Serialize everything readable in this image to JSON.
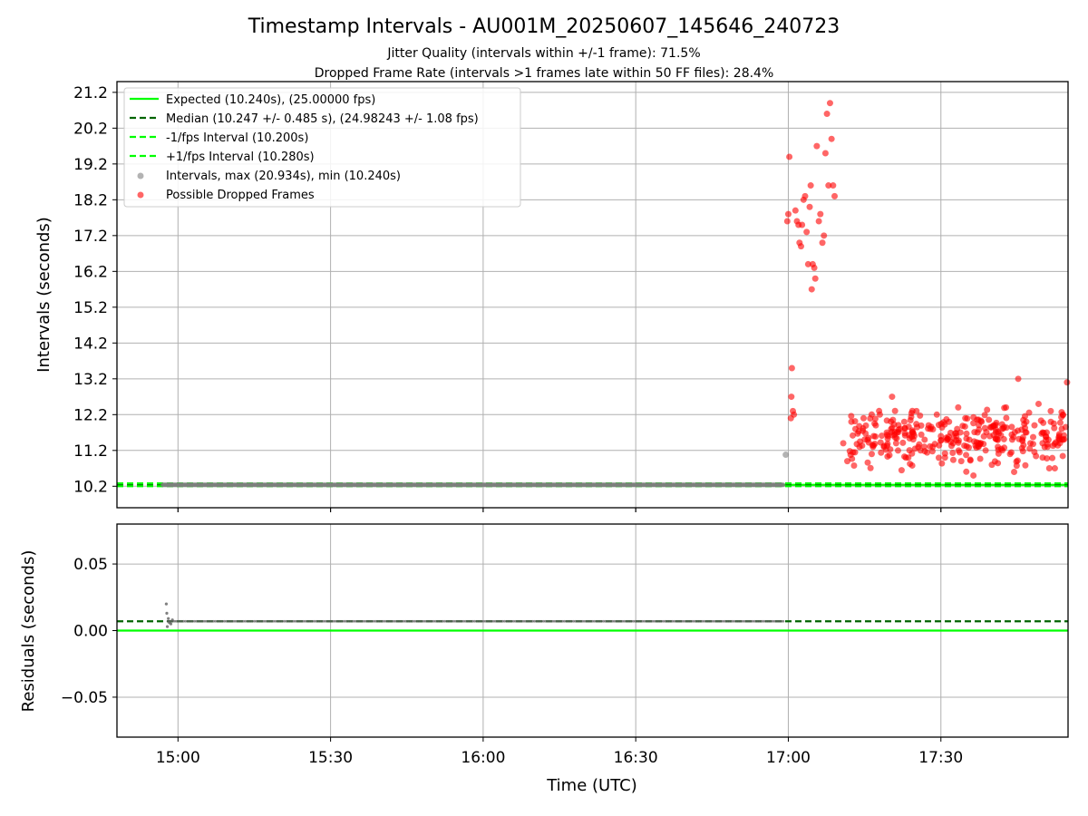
{
  "figure": {
    "title": "Timestamp Intervals - AU001M_20250607_145646_240723",
    "subtitle_1": "Jitter Quality (intervals within +/-1 frame): 71.5%",
    "subtitle_2": "Dropped Frame Rate (intervals >1 frames late within 50 FF files): 28.4%"
  },
  "chart_data": [
    {
      "type": "scatter",
      "panel": "intervals",
      "ylabel": "Intervals (seconds)",
      "xlabel": "",
      "xlim": [
        "14:48",
        "17:55"
      ],
      "ylim": [
        9.6,
        21.5
      ],
      "yticks": [
        "10.2",
        "11.2",
        "12.2",
        "13.2",
        "14.2",
        "15.2",
        "16.2",
        "17.2",
        "18.2",
        "19.2",
        "20.2",
        "21.2"
      ],
      "xticks": [
        "15:00",
        "15:30",
        "16:00",
        "16:30",
        "17:00",
        "17:30"
      ],
      "grid": true,
      "legend_position": "top-left",
      "reference_lines": [
        {
          "name": "Expected (10.240s), (25.00000 fps)",
          "value": 10.24,
          "style": "solid",
          "color": "#00ff00"
        },
        {
          "name": "Median (10.247 +/- 0.485 s), (24.98243 +/- 1.08 fps)",
          "value": 10.247,
          "style": "dashed",
          "color": "#006400"
        },
        {
          "name": "-1/fps Interval (10.200s)",
          "value": 10.2,
          "style": "dashed",
          "color": "#00ff00"
        },
        {
          "name": "+1/fps Interval (10.280s)",
          "value": 10.28,
          "style": "dashed",
          "color": "#00ff00"
        }
      ],
      "series": [
        {
          "name": "Intervals, max (20.934s), min (10.240s)",
          "color": "#808080",
          "regular": {
            "x_start": "14:57",
            "x_end": "16:59",
            "y": 10.24,
            "count": 700
          },
          "points": [
            {
              "x": "16:59.5",
              "y": 11.08
            }
          ]
        },
        {
          "name": "Possible Dropped Frames",
          "color": "#ff0000",
          "points": [
            {
              "x": "16:59.8",
              "y": 17.6
            },
            {
              "x": "17:00.0",
              "y": 17.8
            },
            {
              "x": "17:00.2",
              "y": 19.4
            },
            {
              "x": "17:00.5",
              "y": 12.1
            },
            {
              "x": "17:00.6",
              "y": 12.7
            },
            {
              "x": "17:00.7",
              "y": 13.5
            },
            {
              "x": "17:00.9",
              "y": 12.3
            },
            {
              "x": "17:01.1",
              "y": 12.2
            },
            {
              "x": "17:01.4",
              "y": 17.9
            },
            {
              "x": "17:01.7",
              "y": 17.6
            },
            {
              "x": "17:02.0",
              "y": 17.5
            },
            {
              "x": "17:02.2",
              "y": 17.0
            },
            {
              "x": "17:02.5",
              "y": 16.9
            },
            {
              "x": "17:02.7",
              "y": 17.5
            },
            {
              "x": "17:03.0",
              "y": 18.2
            },
            {
              "x": "17:03.3",
              "y": 18.3
            },
            {
              "x": "17:03.6",
              "y": 17.3
            },
            {
              "x": "17:03.9",
              "y": 16.4
            },
            {
              "x": "17:04.2",
              "y": 18.0
            },
            {
              "x": "17:04.4",
              "y": 18.6
            },
            {
              "x": "17:04.6",
              "y": 15.7
            },
            {
              "x": "17:04.8",
              "y": 16.4
            },
            {
              "x": "17:05.1",
              "y": 16.3
            },
            {
              "x": "17:05.3",
              "y": 16.0
            },
            {
              "x": "17:05.6",
              "y": 19.7
            },
            {
              "x": "17:06.0",
              "y": 17.6
            },
            {
              "x": "17:06.3",
              "y": 17.8
            },
            {
              "x": "17:06.7",
              "y": 17.0
            },
            {
              "x": "17:07.0",
              "y": 17.2
            },
            {
              "x": "17:07.3",
              "y": 19.5
            },
            {
              "x": "17:07.6",
              "y": 20.6
            },
            {
              "x": "17:07.9",
              "y": 18.6
            },
            {
              "x": "17:08.2",
              "y": 20.9
            },
            {
              "x": "17:08.5",
              "y": 19.9
            },
            {
              "x": "17:08.8",
              "y": 18.6
            },
            {
              "x": "17:09.1",
              "y": 18.3
            },
            {
              "x": "17:10.8",
              "y": 11.4
            },
            {
              "x": "17:11.6",
              "y": 10.9
            },
            {
              "x": "17:12.4",
              "y": 12.0
            },
            {
              "x": "17:13.2",
              "y": 11.8
            },
            {
              "x": "17:14.0",
              "y": 11.3
            },
            {
              "x": "17:14.8",
              "y": 12.1
            },
            {
              "x": "17:15.6",
              "y": 11.5
            },
            {
              "x": "17:16.4",
              "y": 11.1
            },
            {
              "x": "17:17.2",
              "y": 11.9
            },
            {
              "x": "17:18.0",
              "y": 12.2
            },
            {
              "x": "17:18.8",
              "y": 11.3
            },
            {
              "x": "17:19.6",
              "y": 11.6
            },
            {
              "x": "17:20.4",
              "y": 12.7
            },
            {
              "x": "17:21.2",
              "y": 11.4
            },
            {
              "x": "17:22.0",
              "y": 11.8
            },
            {
              "x": "17:22.8",
              "y": 12.0
            },
            {
              "x": "17:23.6",
              "y": 11.0
            },
            {
              "x": "17:24.4",
              "y": 11.7
            },
            {
              "x": "17:25.2",
              "y": 12.3
            },
            {
              "x": "17:26.0",
              "y": 11.2
            },
            {
              "x": "17:26.8",
              "y": 11.5
            },
            {
              "x": "17:27.6",
              "y": 11.9
            },
            {
              "x": "17:28.4",
              "y": 11.3
            },
            {
              "x": "17:29.2",
              "y": 12.2
            },
            {
              "x": "17:30.0",
              "y": 11.6
            },
            {
              "x": "17:30.8",
              "y": 11.0
            },
            {
              "x": "17:31.6",
              "y": 12.0
            },
            {
              "x": "17:32.4",
              "y": 11.4
            },
            {
              "x": "17:33.2",
              "y": 11.8
            },
            {
              "x": "17:34.0",
              "y": 10.9
            },
            {
              "x": "17:34.8",
              "y": 12.1
            },
            {
              "x": "17:35.6",
              "y": 11.5
            },
            {
              "x": "17:36.4",
              "y": 10.5
            },
            {
              "x": "17:37.2",
              "y": 11.7
            },
            {
              "x": "17:38.0",
              "y": 12.0
            },
            {
              "x": "17:38.8",
              "y": 11.2
            },
            {
              "x": "17:39.6",
              "y": 11.6
            },
            {
              "x": "17:40.4",
              "y": 11.9
            },
            {
              "x": "17:41.2",
              "y": 11.3
            },
            {
              "x": "17:42.0",
              "y": 11.8
            },
            {
              "x": "17:42.8",
              "y": 12.4
            },
            {
              "x": "17:43.6",
              "y": 11.1
            },
            {
              "x": "17:44.4",
              "y": 10.6
            },
            {
              "x": "17:45.2",
              "y": 13.2
            },
            {
              "x": "17:46.0",
              "y": 11.5
            },
            {
              "x": "17:46.8",
              "y": 12.0
            },
            {
              "x": "17:47.6",
              "y": 11.4
            },
            {
              "x": "17:48.4",
              "y": 11.9
            },
            {
              "x": "17:49.2",
              "y": 12.5
            },
            {
              "x": "17:50.0",
              "y": 11.0
            },
            {
              "x": "17:50.8",
              "y": 11.7
            },
            {
              "x": "17:51.6",
              "y": 12.3
            },
            {
              "x": "17:52.4",
              "y": 10.7
            },
            {
              "x": "17:53.2",
              "y": 11.5
            },
            {
              "x": "17:54.0",
              "y": 12.2
            },
            {
              "x": "17:54.8",
              "y": 13.1
            }
          ],
          "band": {
            "x_start": "17:12",
            "x_end": "17:55",
            "y_min": 10.5,
            "y_max": 12.4,
            "approx_count": 280
          }
        }
      ]
    },
    {
      "type": "scatter",
      "panel": "residuals",
      "ylabel": "Residuals (seconds)",
      "xlabel": "Time (UTC)",
      "xlim": [
        "14:48",
        "17:55"
      ],
      "ylim": [
        -0.08,
        0.08
      ],
      "yticks": [
        "0.05",
        "0.00",
        "−0.05"
      ],
      "xticks": [
        "15:00",
        "15:30",
        "16:00",
        "16:30",
        "17:00",
        "17:30"
      ],
      "grid": true,
      "reference_lines": [
        {
          "value": 0.0,
          "style": "solid",
          "color": "#00ff00"
        },
        {
          "value": 0.007,
          "style": "dashed",
          "color": "#006400"
        }
      ],
      "series": [
        {
          "color": "#606060",
          "regular": {
            "x_start": "14:58",
            "x_end": "16:59",
            "y": 0.007,
            "count": 350
          },
          "points": [
            {
              "x": "14:57.7",
              "y": 0.02
            },
            {
              "x": "14:57.8",
              "y": 0.013
            },
            {
              "x": "14:57.9",
              "y": 0.003
            },
            {
              "x": "14:58.1",
              "y": 0.009
            },
            {
              "x": "14:58.3",
              "y": 0.006
            },
            {
              "x": "14:58.6",
              "y": 0.005
            },
            {
              "x": "14:58.9",
              "y": 0.008
            }
          ]
        }
      ]
    }
  ]
}
